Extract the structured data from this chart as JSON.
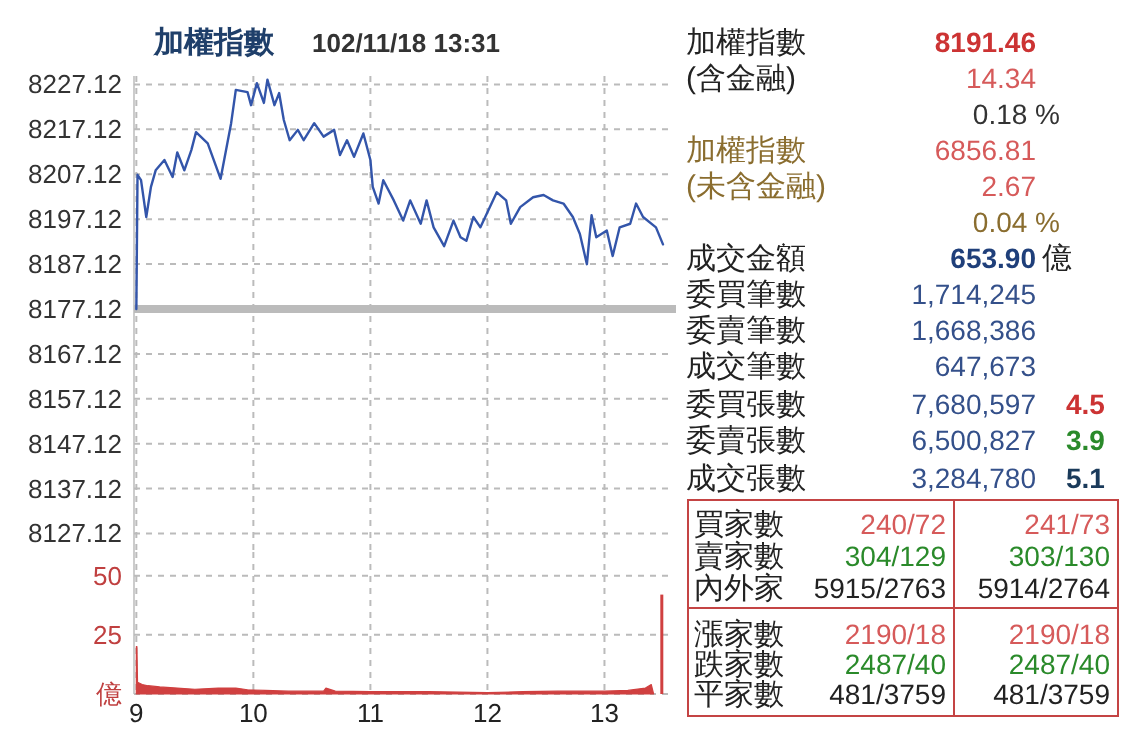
{
  "chart_data": [
    {
      "type": "line",
      "title": "加權指數",
      "subtitle": "102/11/18 13:31",
      "color": "#3355aa",
      "x": [
        9.0,
        9.01,
        9.04,
        9.085,
        9.125,
        9.165,
        9.24,
        9.31,
        9.35,
        9.41,
        9.47,
        9.51,
        9.61,
        9.72,
        9.81,
        9.85,
        9.95,
        9.98,
        10.03,
        10.09,
        10.12,
        10.18,
        10.22,
        10.26,
        10.31,
        10.38,
        10.43,
        10.52,
        10.6,
        10.69,
        10.74,
        10.8,
        10.86,
        10.94,
        11.0,
        11.02,
        11.07,
        11.11,
        11.2,
        11.28,
        11.34,
        11.43,
        11.48,
        11.54,
        11.63,
        11.71,
        11.77,
        11.82,
        11.88,
        11.94,
        12.08,
        12.16,
        12.2,
        12.28,
        12.39,
        12.48,
        12.56,
        12.65,
        12.73,
        12.79,
        12.85,
        12.89,
        12.93,
        13.02,
        13.07,
        13.13,
        13.22,
        13.27,
        13.33,
        13.44,
        13.5
      ],
      "values": [
        8177.12,
        8207.0,
        8205.8,
        8197.6,
        8204.3,
        8208.0,
        8210.3,
        8206.5,
        8212.0,
        8208.0,
        8212.5,
        8216.5,
        8214.0,
        8206.1,
        8218.5,
        8225.9,
        8225.4,
        8222.5,
        8227.4,
        8223.0,
        8228.2,
        8222.5,
        8225.2,
        8219.2,
        8214.7,
        8217.0,
        8214.7,
        8218.5,
        8215.5,
        8217.0,
        8211.4,
        8214.7,
        8211.0,
        8216.2,
        8210.3,
        8204.3,
        8200.6,
        8205.8,
        8201.3,
        8196.8,
        8201.3,
        8196.1,
        8201.3,
        8195.3,
        8191.1,
        8196.8,
        8193.1,
        8192.3,
        8197.6,
        8195.3,
        8203.1,
        8201.3,
        8196.1,
        8199.8,
        8202.0,
        8202.5,
        8201.3,
        8200.6,
        8197.6,
        8193.8,
        8187.1,
        8198.0,
        8193.1,
        8194.6,
        8188.9,
        8195.3,
        8196.1,
        8200.6,
        8197.6,
        8195.3,
        8191.5
      ],
      "xlim": [
        8.98,
        13.56
      ],
      "xticks": [
        {
          "value": 9,
          "label": null
        },
        {
          "value": 10,
          "label": null
        },
        {
          "value": 11,
          "label": null
        },
        {
          "value": 12,
          "label": null
        },
        {
          "value": 13,
          "label": null
        }
      ],
      "ylim": [
        8123.0,
        8229.0
      ],
      "yticks": [
        8127.12,
        8137.12,
        8147.12,
        8157.12,
        8167.12,
        8177.12,
        8187.12,
        8197.12,
        8207.12,
        8217.12,
        8227.12
      ],
      "grid": true,
      "tick_labels": "y",
      "ref_lines": [
        {
          "axis": "y",
          "value": 8177.12,
          "color": "#bbbbbb"
        }
      ]
    },
    {
      "type": "area",
      "series": [
        {
          "type": "area",
          "color": "#d04040",
          "x": [
            9.0,
            9.005,
            9.01,
            9.05,
            9.1,
            9.2,
            9.35,
            9.5,
            9.7,
            9.85,
            9.95,
            10.1,
            10.3,
            10.6,
            10.62,
            10.7,
            11.0,
            11.5,
            12.0,
            12.3,
            12.6,
            13.0,
            13.2,
            13.35,
            13.4,
            13.42
          ],
          "values": [
            20,
            20,
            5,
            4,
            3.5,
            3,
            2.5,
            2,
            2.5,
            2.5,
            1.8,
            1.5,
            1.2,
            1.2,
            2.5,
            1.2,
            1.0,
            1.0,
            0.6,
            1.0,
            1.2,
            1.2,
            1.5,
            2.5,
            4,
            0
          ]
        },
        {
          "type": "bar",
          "color": "#d04040",
          "x": [
            13.49
          ],
          "values": [
            42
          ]
        }
      ],
      "xlim": [
        8.98,
        13.56
      ],
      "xticks": [
        9,
        10,
        11,
        12,
        13
      ],
      "ylim": [
        0,
        60
      ],
      "yticks": [
        {
          "value": 0,
          "label": "億"
        },
        25,
        50
      ],
      "grid": true
    },
    {
      "type": "other",
      "annotations": [
        "加權指數",
        "8191.46",
        "(含金融)",
        "14.34",
        "0.18 %",
        "加權指數",
        "6856.81",
        "(未含金融)",
        "2.67",
        "0.04 %",
        "成交金額",
        "653.90",
        "億",
        "委買筆數",
        "1,714,245",
        "委賣筆數",
        "1,668,386",
        "成交筆數",
        "647,673",
        "委買張數",
        "7,680,597",
        "4.5",
        "委賣張數",
        "6,500,827",
        "3.9",
        "成交張數",
        "3,284,780",
        "5.1",
        "買家數",
        "240/72",
        "241/73",
        "賣家數",
        "304/129",
        "303/130",
        "內外家",
        "5915/2763",
        "5914/2764",
        "漲家數",
        "2190/18",
        "2190/18",
        "跌家數",
        "2487/40",
        "2487/40",
        "平家數",
        "481/3759",
        "481/3759"
      ]
    }
  ]
}
